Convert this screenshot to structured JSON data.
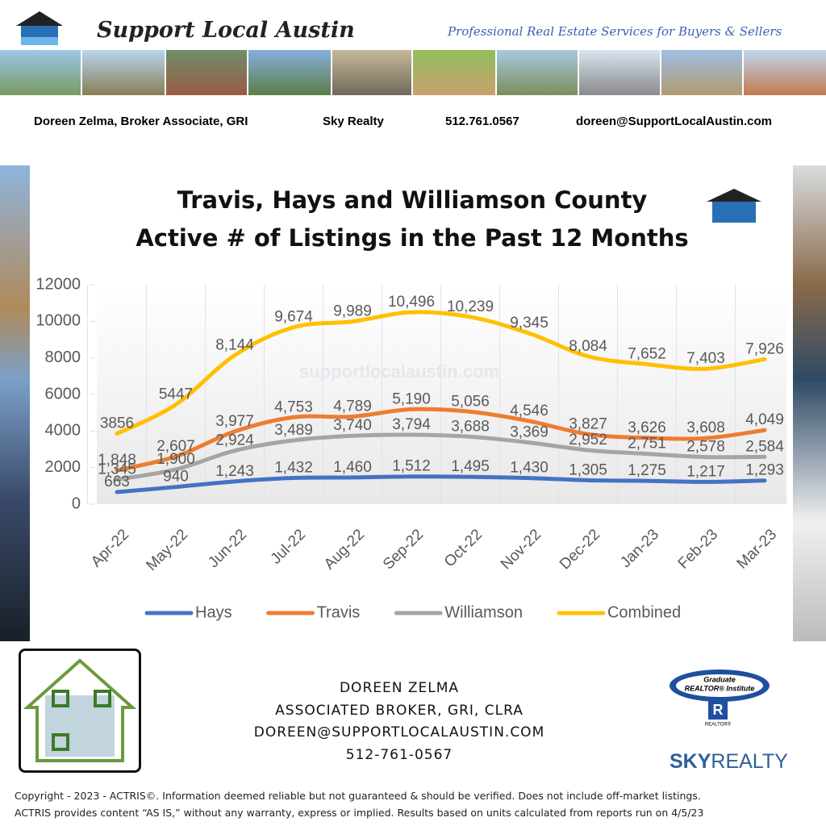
{
  "header": {
    "brand": "Support Local Austin",
    "tagline": "Professional Real Estate Services for Buyers & Sellers",
    "contact": [
      "Doreen Zelma,  Broker Associate, GRI",
      "Sky Realty",
      "512.761.0567",
      "doreen@SupportLocalAustin.com"
    ]
  },
  "chart_data": {
    "type": "line",
    "title": [
      "Travis, Hays and Williamson County",
      "Active # of Listings in the Past 12 Months"
    ],
    "watermark": "supportlocalaustin.com",
    "categories": [
      "Apr-22",
      "May-22",
      "Jun-22",
      "Jul-22",
      "Aug-22",
      "Sep-22",
      "Oct-22",
      "Nov-22",
      "Dec-22",
      "Jan-23",
      "Feb-23",
      "Mar-23"
    ],
    "series": [
      {
        "name": "Hays",
        "color": "#4472c4",
        "values": [
          663,
          940,
          1243,
          1432,
          1460,
          1512,
          1495,
          1430,
          1305,
          1275,
          1217,
          1293
        ],
        "value_labels": [
          "663",
          "940",
          "1,243",
          "1,432",
          "1,460",
          "1,512",
          "1,495",
          "1,430",
          "1,305",
          "1,275",
          "1,217",
          "1,293"
        ]
      },
      {
        "name": "Travis",
        "color": "#ed7d31",
        "values": [
          1848,
          2607,
          3977,
          4753,
          4789,
          5190,
          5056,
          4546,
          3827,
          3626,
          3608,
          4049
        ],
        "value_labels": [
          "1,848",
          "2,607",
          "3,977",
          "4,753",
          "4,789",
          "5,190",
          "5,056",
          "4,546",
          "3,827",
          "3,626",
          "3,608",
          "4,049"
        ]
      },
      {
        "name": "Williamson",
        "color": "#a5a5a5",
        "values": [
          1345,
          1900,
          2924,
          3489,
          3740,
          3794,
          3688,
          3369,
          2952,
          2751,
          2578,
          2584
        ],
        "value_labels": [
          "1,345",
          "1,900",
          "2,924",
          "3,489",
          "3,740",
          "3,794",
          "3,688",
          "3,369",
          "2,952",
          "2,751",
          "2,578",
          "2,584"
        ]
      },
      {
        "name": "Combined",
        "color": "#ffc000",
        "values": [
          3856,
          5447,
          8144,
          9674,
          9989,
          10496,
          10239,
          9345,
          8084,
          7652,
          7403,
          7926
        ],
        "value_labels": [
          "3856",
          "5447",
          "8,144",
          "9,674",
          "9,989",
          "10,496",
          "10,239",
          "9,345",
          "8,084",
          "7,652",
          "7,403",
          "7,926"
        ]
      }
    ],
    "ylim": [
      0,
      12000
    ],
    "yticks": [
      0,
      2000,
      4000,
      6000,
      8000,
      10000,
      12000
    ],
    "grid": true,
    "legend": "bottom"
  },
  "footer": {
    "lines": [
      "DOREEN ZELMA",
      "ASSOCIATED BROKER, GRI, CLRA",
      "DOREEN@SUPPORTLOCALAUSTIN.COM",
      "512-761-0567"
    ],
    "badge": [
      "Graduate",
      "REALTOR® Institute",
      "REALTOR®"
    ],
    "brand": [
      "SKY",
      "REALTY"
    ],
    "copyright": [
      "Copyright - 2023 - ACTRIS©. Information deemed reliable but not guaranteed & should be verified. Does not include off-market listings.",
      "ACTRIS provides content “AS IS,” without any warranty, express or implied. Results based on units calculated from reports run on 4/5/23"
    ]
  }
}
